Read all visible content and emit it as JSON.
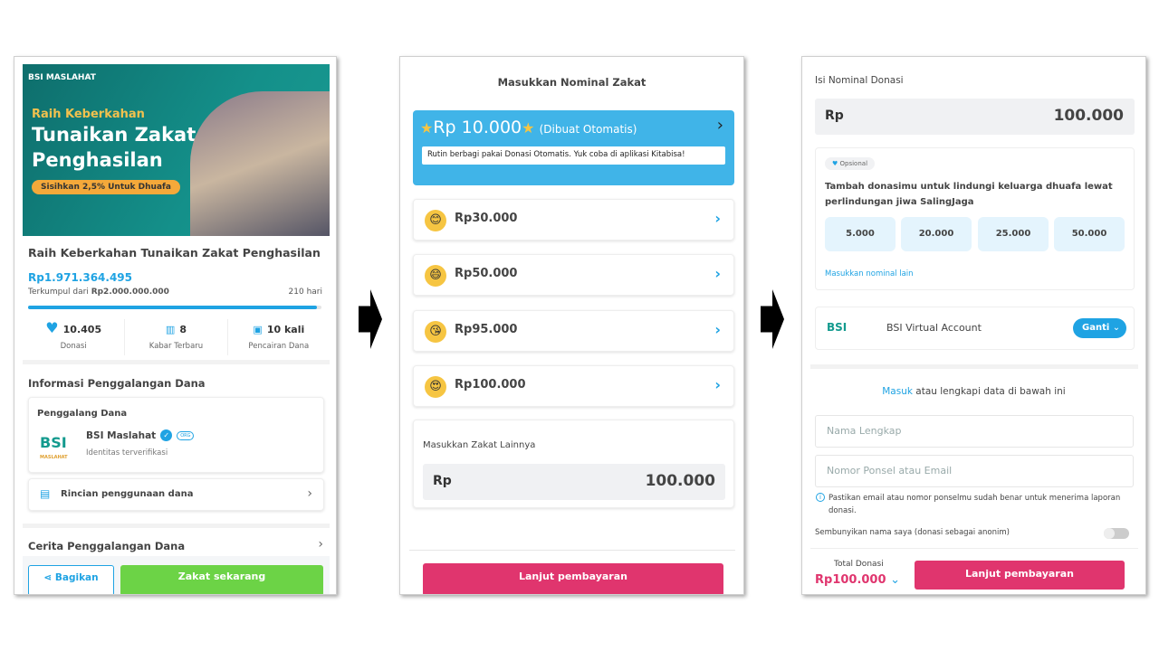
{
  "screen1": {
    "banner": {
      "logo": "BSI MASLAHAT",
      "line1": "Raih Keberkahan",
      "line2": "Tunaikan Zakat",
      "line3": "Penghasilan",
      "pill": "Sisihkan 2,5% Untuk Dhuafa"
    },
    "title": "Raih Keberkahan Tunaikan Zakat Penghasilan",
    "collected": "Rp1.971.364.495",
    "target_prefix": "Terkumpul dari ",
    "target": "Rp2.000.000.000",
    "days_left": "210 hari",
    "progress_percent": 98.6,
    "stats": [
      {
        "value": "10.405",
        "label": "Donasi",
        "icon": "heart-icon"
      },
      {
        "value": "8",
        "label": "Kabar Terbaru",
        "icon": "news-icon"
      },
      {
        "value": "10 kali",
        "label": "Pencairan Dana",
        "icon": "withdraw-icon"
      }
    ],
    "info_heading": "Informasi Penggalangan Dana",
    "fundraiser_label": "Penggalang Dana",
    "fundraiser_logo": "BSI",
    "fundraiser_logo_sub": "MASLAHAT",
    "fundraiser_name": "BSI Maslahat",
    "org_badge": "ORG",
    "fundraiser_verified": "Identitas terverifikasi",
    "fund_usage": "Rincian penggunaan dana",
    "story_heading": "Cerita Penggalangan Dana",
    "share_label": "Bagikan",
    "donate_label": "Zakat sekarang"
  },
  "screen2": {
    "heading": "Masukkan Nominal Zakat",
    "auto_amount": "Rp 10.000",
    "auto_note": "(Dibuat Otomatis)",
    "auto_desc": "Rutin berbagi pakai Donasi Otomatis. Yuk coba di aplikasi Kitabisa!",
    "options": [
      {
        "amount": "Rp30.000",
        "emoji": "😊"
      },
      {
        "amount": "Rp50.000",
        "emoji": "😄"
      },
      {
        "amount": "Rp95.000",
        "emoji": "😘"
      },
      {
        "amount": "Rp100.000",
        "emoji": "😍"
      }
    ],
    "other_label": "Masukkan Zakat Lainnya",
    "currency": "Rp",
    "other_value": "100.000",
    "continue_label": "Lanjut pembayaran"
  },
  "screen3": {
    "heading": "Isi Nominal Donasi",
    "currency": "Rp",
    "amount": "100.000",
    "optional_badge": "Opsional",
    "addon_text": "Tambah donasimu untuk lindungi keluarga dhuafa lewat perlindungan jiwa SalingJaga",
    "addon_options": [
      "5.000",
      "20.000",
      "25.000",
      "50.000"
    ],
    "addon_other": "Masukkan nominal lain",
    "payment_logo": "BSI",
    "payment_method": "BSI Virtual Account",
    "change_label": "Ganti",
    "login_link": "Masuk",
    "login_text": " atau lengkapi data di bawah ini",
    "name_placeholder": "Nama Lengkap",
    "contact_placeholder": "Nomor Ponsel atau Email",
    "info_note": "Pastikan email atau nomor ponselmu sudah benar untuk menerima laporan donasi.",
    "anon_label": "Sembunyikan nama saya (donasi sebagai anonim)",
    "anon_enabled": false,
    "total_label": "Total Donasi",
    "total_value": "Rp100.000",
    "continue_label": "Lanjut pembayaran"
  },
  "colors": {
    "blue": "#1fa3e3",
    "green": "#6cd346",
    "pink": "#e0356e",
    "teal": "#0f7b78"
  }
}
